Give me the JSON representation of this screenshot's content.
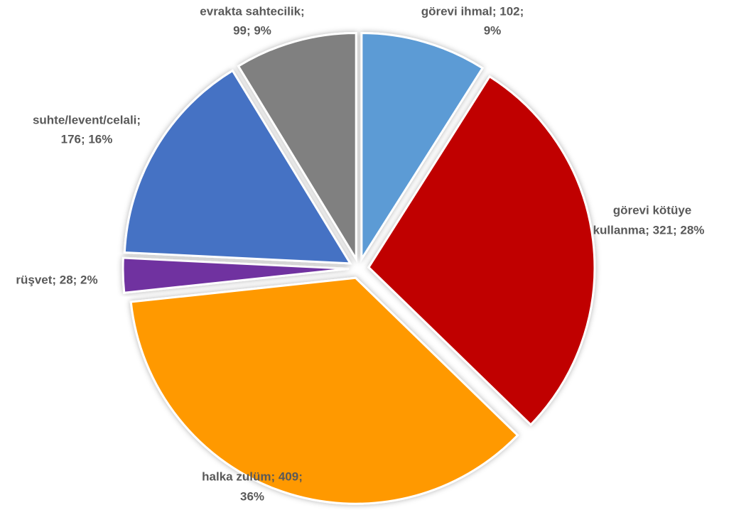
{
  "chart_data": {
    "type": "pie",
    "values": [
      102,
      321,
      409,
      28,
      176,
      99
    ],
    "colors": [
      "#5b9bd5",
      "#c00000",
      "#ff9900",
      "#7030a0",
      "#4472c4",
      "#808080"
    ],
    "value_labels": [
      [
        "görevi ihmal; 102;",
        "9%"
      ],
      [
        "görevi kötüye",
        "kullanma; 321; 28%"
      ],
      [
        "halka zulüm; 409;",
        "36%"
      ],
      [
        "rüşvet; 28; 2%"
      ],
      [
        "suhte/levent/celali;",
        "176; 16%"
      ],
      [
        "evrakta sahtecilik;",
        "99; 9%"
      ]
    ]
  }
}
